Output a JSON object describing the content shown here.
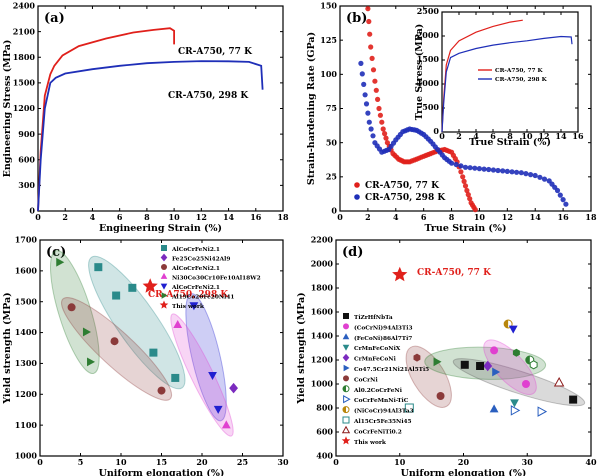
{
  "chart_data": [
    {
      "panel": "(a)",
      "type": "line",
      "xlabel": "Engineering Strain (%)",
      "ylabel": "Engineering Stress (MPa)",
      "xlim": [
        0,
        18
      ],
      "ylim": [
        0,
        2400
      ],
      "xticks": [
        0,
        2,
        4,
        6,
        8,
        10,
        12,
        14,
        16,
        18
      ],
      "yticks": [
        0,
        300,
        600,
        900,
        1200,
        1500,
        1800,
        2100,
        2400
      ],
      "series": [
        {
          "name": "CR-A750, 77 K",
          "color": "#e0201b",
          "x": [
            0,
            0.2,
            0.5,
            0.9,
            1.2,
            1.8,
            3,
            5,
            7,
            8.5,
            9.7,
            10.0,
            10.0
          ],
          "y": [
            0,
            700,
            1350,
            1600,
            1700,
            1820,
            1930,
            2020,
            2090,
            2120,
            2140,
            2110,
            1950
          ]
        },
        {
          "name": "CR-A750, 298 K",
          "color": "#1f2fb8",
          "x": [
            0,
            0.2,
            0.5,
            0.9,
            1.3,
            2,
            4,
            6,
            8,
            10,
            12,
            14,
            15.5,
            16.4,
            16.5
          ],
          "y": [
            0,
            600,
            1200,
            1500,
            1560,
            1610,
            1660,
            1700,
            1730,
            1745,
            1755,
            1752,
            1745,
            1700,
            1420
          ]
        }
      ],
      "annotations": [
        "CR-A750, 77 K",
        "CR-A750, 298 K"
      ]
    },
    {
      "panel": "(b)",
      "type": "scatter",
      "xlabel": "True Strain (%)",
      "ylabel": "Strain-hardening Rate (GPa)",
      "xlim": [
        0,
        18
      ],
      "ylim": [
        0,
        150
      ],
      "xticks": [
        0,
        2,
        4,
        6,
        8,
        10,
        12,
        14,
        16,
        18
      ],
      "yticks": [
        0,
        25,
        50,
        75,
        100,
        125,
        150
      ],
      "legend": "bottom-left",
      "series": [
        {
          "name": "CR-A750, 77 K",
          "color": "#e0201b",
          "x": [
            2.0,
            2.2,
            2.5,
            2.8,
            3.1,
            3.4,
            3.8,
            4.2,
            4.6,
            5.0,
            5.5,
            6.0,
            6.5,
            7.0,
            7.5,
            8.0,
            8.4,
            8.8,
            9.1,
            9.4,
            9.7
          ],
          "y": [
            148,
            120,
            95,
            75,
            60,
            50,
            42,
            38,
            36,
            36,
            38,
            40,
            42,
            44,
            45,
            43,
            36,
            25,
            15,
            6,
            1
          ]
        },
        {
          "name": "CR-A750, 298 K",
          "color": "#1f2fb8",
          "x": [
            1.5,
            1.8,
            2.1,
            2.5,
            3.0,
            3.5,
            4.0,
            4.5,
            5.0,
            5.5,
            6.0,
            6.5,
            7.0,
            7.5,
            8.0,
            9.0,
            10.0,
            11.0,
            12.0,
            13.0,
            14.0,
            15.0,
            15.6,
            16.2
          ],
          "y": [
            108,
            85,
            65,
            50,
            43,
            45,
            52,
            58,
            60,
            59,
            56,
            51,
            45,
            39,
            35,
            32,
            31,
            30,
            29,
            28,
            26,
            22,
            15,
            5
          ]
        }
      ],
      "inset": {
        "xlabel": "True Strain (%)",
        "ylabel": "True Stress (MPa)",
        "xlim": [
          0,
          16
        ],
        "ylim": [
          0,
          2500
        ],
        "xticks": [
          0,
          2,
          4,
          6,
          8,
          10,
          12,
          14,
          16
        ],
        "yticks": [
          0,
          500,
          1000,
          1500,
          2000,
          2500
        ],
        "legend": "bottom-right",
        "series": [
          {
            "name": "CR-A750, 77 K",
            "color": "#e0201b",
            "x": [
              0,
              0.2,
              0.5,
              1.0,
              2,
              4,
              6,
              8,
              9.5
            ],
            "y": [
              0,
              700,
              1400,
              1700,
              1900,
              2080,
              2200,
              2290,
              2330
            ]
          },
          {
            "name": "CR-A750, 298 K",
            "color": "#1f2fb8",
            "x": [
              0,
              0.2,
              0.5,
              1.0,
              2,
              4,
              6,
              8,
              10,
              12,
              14,
              15.2,
              15.3
            ],
            "y": [
              0,
              600,
              1250,
              1550,
              1640,
              1740,
              1810,
              1860,
              1900,
              1950,
              1990,
              1980,
              1830
            ]
          }
        ]
      }
    },
    {
      "panel": "(c)",
      "type": "scatter",
      "xlabel": "Uniform elongation (%)",
      "ylabel": "Yield strength (MPa)",
      "xlim": [
        0,
        30
      ],
      "ylim": [
        1000,
        1700
      ],
      "xticks": [
        0,
        5,
        10,
        15,
        20,
        25,
        30
      ],
      "yticks": [
        1000,
        1100,
        1200,
        1300,
        1400,
        1500,
        1600,
        1700
      ],
      "legend": "top-right",
      "annotation": "CR-A750, 298 K",
      "series": [
        {
          "name": "AlCoCrFeNi2.1",
          "color": "#2a8a8a",
          "marker": "square",
          "x": [
            7.2,
            11.4,
            14.0,
            16.7,
            9.4
          ],
          "y": [
            1612,
            1545,
            1335,
            1253,
            1520
          ]
        },
        {
          "name": "Fe25Co25Ni42Al9",
          "color": "#7b2bbf",
          "marker": "diamond",
          "x": [
            23.9
          ],
          "y": [
            1220
          ]
        },
        {
          "name": "AlCoCrFeNi2.1",
          "color": "#8b3a3a",
          "marker": "circle",
          "x": [
            3.9,
            9.2,
            15.0
          ],
          "y": [
            1482,
            1372,
            1212
          ]
        },
        {
          "name": "Ni30Co30Cr10Fe10Al18W2",
          "color": "#e040d0",
          "marker": "triangle-up",
          "x": [
            17.0,
            23.0
          ],
          "y": [
            1425,
            1100
          ]
        },
        {
          "name": "AlCoCrFeNi2.1",
          "color": "#2020d0",
          "marker": "triangle-down",
          "x": [
            19.0,
            21.3,
            22.0
          ],
          "y": [
            1488,
            1262,
            1152
          ]
        },
        {
          "name": "Al19Co20Fe20Ni41",
          "color": "#2e7d32",
          "marker": "triangle-right",
          "x": [
            2.4,
            5.7,
            6.2
          ],
          "y": [
            1628,
            1402,
            1305
          ]
        },
        {
          "name": "This work",
          "color": "#e0201b",
          "marker": "star",
          "x": [
            13.6
          ],
          "y": [
            1550
          ]
        }
      ],
      "legend_entries": [
        "AlCoCrFeNi2.1",
        "Fe25Co25Ni42Al9",
        "AlCoCrFeNi2.1",
        "Ni30Co30Cr10Fe10Al18W2",
        "AlCoCrFeNi2.1",
        "Al19Co20Fe20Ni41",
        "This work"
      ]
    },
    {
      "panel": "(d)",
      "type": "scatter",
      "xlabel": "Uniform elongation (%)",
      "ylabel": "Yield strength (MPa)",
      "xlim": [
        0,
        40
      ],
      "ylim": [
        400,
        2200
      ],
      "xticks": [
        0,
        10,
        20,
        30,
        40
      ],
      "yticks": [
        400,
        600,
        800,
        1000,
        1200,
        1400,
        1600,
        1800,
        2000,
        2200
      ],
      "legend": "left",
      "annotation": "CR-A750, 77 K",
      "series": [
        {
          "name": "TiZrHfNbTa",
          "color": "#111111",
          "marker": "square",
          "x": [
            20.2,
            37.2
          ],
          "y": [
            1160,
            870
          ]
        },
        {
          "name": "(CoCrNi)94Al3Ti3",
          "color": "#e040d0",
          "marker": "circle",
          "x": [
            24.8,
            29.8
          ],
          "y": [
            1280,
            1000
          ]
        },
        {
          "name": "(FeCoNi)86Al7Ti7",
          "color": "#2a5fbf",
          "marker": "triangle-up",
          "x": [
            24.8
          ],
          "y": [
            790
          ]
        },
        {
          "name": "CrMnFeCoNiX",
          "color": "#2a8a8a",
          "marker": "triangle-down",
          "x": [
            28.0
          ],
          "y": [
            845
          ]
        },
        {
          "name": "CrMnFeCoNi",
          "color": "#7b2bbf",
          "marker": "diamond",
          "x": [
            23.8
          ],
          "y": [
            1150
          ]
        },
        {
          "name": "Co47.5Cr21Ni21Al5Ti5",
          "color": "#2a5fbf",
          "marker": "triangle-right",
          "x": [
            25.0
          ],
          "y": [
            1100
          ]
        },
        {
          "name": "CoCrNi",
          "color": "#8b3a3a",
          "marker": "circle",
          "x": [
            16.4
          ],
          "y": [
            900
          ]
        },
        {
          "name": "Al0.2CoCrFeNi",
          "color": "#2e7d32",
          "marker": "half-circle",
          "x": [
            30.4
          ],
          "y": [
            1200
          ]
        },
        {
          "name": "CoCrFeMnNi-TiC",
          "color": "#2a5fbf",
          "marker": "triangle-right-open",
          "x": [
            28.0,
            32.2
          ],
          "y": [
            780,
            770
          ]
        },
        {
          "name": "(NiCoCr)94Al3Ta3",
          "color": "#b8860b",
          "marker": "half-circle",
          "x": [
            27.0
          ],
          "y": [
            1500
          ]
        },
        {
          "name": "Al15Cr5Fe35Ni45",
          "color": "#2a8a8a",
          "marker": "square-open",
          "x": [
            11.5
          ],
          "y": [
            800
          ]
        },
        {
          "name": "CoCrFeNiTi0.2",
          "color": "#8b1a1a",
          "marker": "triangle-up-open",
          "x": [
            35.0
          ],
          "y": [
            1010
          ]
        },
        {
          "name": "This work",
          "color": "#e0201b",
          "marker": "star",
          "x": [
            10.0
          ],
          "y": [
            1910
          ]
        }
      ],
      "extra_points": [
        {
          "marker": "triangle-down",
          "color": "#2020d0",
          "x": [
            27.8
          ],
          "y": [
            1460
          ]
        },
        {
          "marker": "triangle-right",
          "color": "#2e7d32",
          "x": [
            15.8
          ],
          "y": [
            1185
          ]
        },
        {
          "marker": "hexagon",
          "color": "#2e7d32",
          "x": [
            28.3
          ],
          "y": [
            1260
          ]
        },
        {
          "marker": "hexagon-open",
          "color": "#2e7d32",
          "x": [
            31.0
          ],
          "y": [
            1160
          ]
        },
        {
          "marker": "hexagon",
          "color": "#8b3a3a",
          "x": [
            12.7
          ],
          "y": [
            1220
          ]
        },
        {
          "marker": "square",
          "color": "#111111",
          "x": [
            22.6
          ],
          "y": [
            1150
          ]
        }
      ],
      "legend_entries": [
        "TiZrHfNbTa",
        "(CoCrNi)94Al3Ti3",
        "(FeCoNi)86Al7Ti7",
        "CrMnFeCoNiX",
        "CrMnFeCoNi",
        "Co47.5Cr21Ni21Al5Ti5",
        "CoCrNi",
        "Al0.2CoCrFeNi",
        "CoCrFeMnNi-TiC",
        "(NiCoCr)94Al3Ta3",
        "Al15Cr5Fe35Ni45",
        "CoCrFeNiTi0.2",
        "This work"
      ]
    }
  ]
}
